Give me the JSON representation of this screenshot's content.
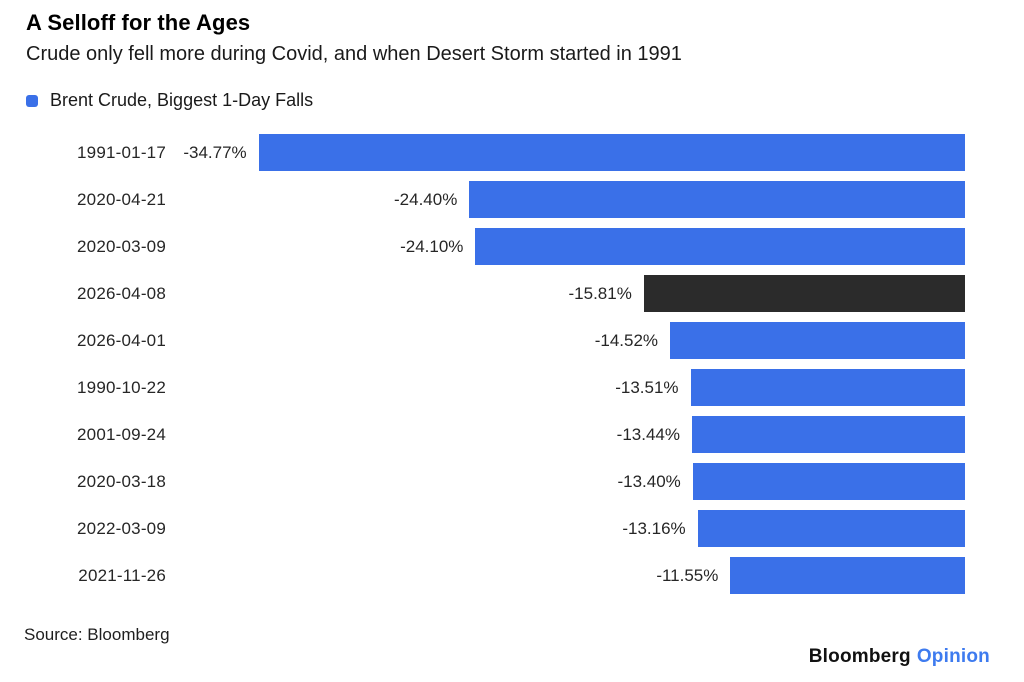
{
  "header": {
    "title": "A Selloff for the Ages",
    "subtitle": "Crude only fell more during Covid, and when Desert Storm started in 1991"
  },
  "legend": {
    "label": "Brent Crude, Biggest 1-Day Falls",
    "swatch_color": "#3A70E8"
  },
  "chart_data": {
    "type": "bar",
    "orientation": "horizontal",
    "title": "A Selloff for the Ages",
    "subtitle": "Crude only fell more during Covid, and when Desert Storm started in 1991",
    "series_name": "Brent Crude, Biggest 1-Day Falls",
    "categories": [
      "1991-01-17",
      "2020-04-21",
      "2020-03-09",
      "2026-04-08",
      "2026-04-01",
      "1990-10-22",
      "2001-09-24",
      "2020-03-18",
      "2022-03-09",
      "2021-11-26"
    ],
    "values": [
      -34.77,
      -24.4,
      -24.1,
      -15.81,
      -14.52,
      -13.51,
      -13.44,
      -13.4,
      -13.16,
      -11.55
    ],
    "value_labels": [
      "-34.77%",
      "-24.40%",
      "-24.10%",
      "-15.81%",
      "-14.52%",
      "-13.51%",
      "-13.44%",
      "-13.40%",
      "-13.16%",
      "-11.55%"
    ],
    "highlighted_category": "2026-04-08",
    "bar_color": "#3A70E8",
    "highlight_color": "#2B2B2B",
    "xlim": [
      -35,
      0
    ],
    "axis_hidden": true,
    "grid": false,
    "legend_position": "top-left",
    "bars_anchored": "right"
  },
  "footer": {
    "source": "Source: Bloomberg",
    "brand": "Bloomberg",
    "brand_suffix": "Opinion",
    "brand_suffix_color": "#3E7BEF"
  }
}
